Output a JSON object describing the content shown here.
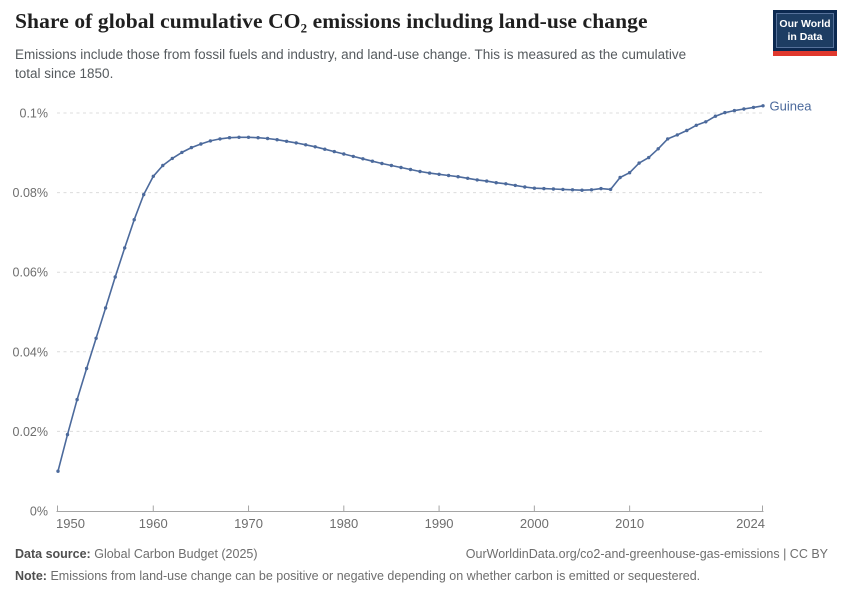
{
  "header": {
    "title": "Share of global cumulative CO₂ emissions including land-use change",
    "subtitle": "Emissions include those from fossil fuels and industry, and land-use change. This is measured as the cumulative total since 1850."
  },
  "logo": {
    "line1": "Our World",
    "line2": "in Data"
  },
  "chart_data": {
    "type": "line",
    "title": "Share of global cumulative CO₂ emissions including land-use change",
    "xlabel": "",
    "ylabel": "",
    "unit": "%",
    "grid": "horizontal-dashed",
    "legend_position": "end-of-line-label",
    "xlim": [
      1950,
      2024
    ],
    "ylim": [
      0,
      0.105
    ],
    "x_ticks": [
      1950,
      1960,
      1970,
      1980,
      1990,
      2000,
      2010,
      2024
    ],
    "y_ticks": [
      {
        "v": 0,
        "label": "0%"
      },
      {
        "v": 0.02,
        "label": "0.02%"
      },
      {
        "v": 0.04,
        "label": "0.04%"
      },
      {
        "v": 0.06,
        "label": "0.06%"
      },
      {
        "v": 0.08,
        "label": "0.08%"
      },
      {
        "v": 0.1,
        "label": "0.1%"
      }
    ],
    "series": [
      {
        "name": "Guinea",
        "color": "#4C6A9C",
        "x": [
          1950,
          1951,
          1952,
          1953,
          1954,
          1955,
          1956,
          1957,
          1958,
          1959,
          1960,
          1961,
          1962,
          1963,
          1964,
          1965,
          1966,
          1967,
          1968,
          1969,
          1970,
          1971,
          1972,
          1973,
          1974,
          1975,
          1976,
          1977,
          1978,
          1979,
          1980,
          1981,
          1982,
          1983,
          1984,
          1985,
          1986,
          1987,
          1988,
          1989,
          1990,
          1991,
          1992,
          1993,
          1994,
          1995,
          1996,
          1997,
          1998,
          1999,
          2000,
          2001,
          2002,
          2003,
          2004,
          2005,
          2006,
          2007,
          2008,
          2009,
          2010,
          2011,
          2012,
          2013,
          2014,
          2015,
          2016,
          2017,
          2018,
          2019,
          2020,
          2021,
          2022,
          2023,
          2024
        ],
        "values": [
          0.01,
          0.0192,
          0.028,
          0.0358,
          0.0434,
          0.051,
          0.0588,
          0.0661,
          0.0732,
          0.0795,
          0.0841,
          0.0868,
          0.0886,
          0.0901,
          0.0913,
          0.0922,
          0.093,
          0.0935,
          0.0938,
          0.0939,
          0.0939,
          0.0938,
          0.0936,
          0.0933,
          0.0929,
          0.0925,
          0.092,
          0.0915,
          0.0909,
          0.0903,
          0.0897,
          0.0891,
          0.0885,
          0.0879,
          0.0873,
          0.0868,
          0.0863,
          0.0858,
          0.0853,
          0.0849,
          0.0846,
          0.0843,
          0.084,
          0.0836,
          0.0832,
          0.0829,
          0.0825,
          0.0822,
          0.0818,
          0.0814,
          0.0811,
          0.081,
          0.0809,
          0.0808,
          0.0807,
          0.0806,
          0.0807,
          0.081,
          0.0808,
          0.0838,
          0.085,
          0.0874,
          0.0888,
          0.091,
          0.0935,
          0.0945,
          0.0956,
          0.0969,
          0.0978,
          0.0992,
          0.1001,
          0.1006,
          0.101,
          0.1014,
          0.1018
        ]
      }
    ]
  },
  "colors": {
    "line": "#4C6A9C",
    "grid": "#dcdcdc",
    "axis": "#a5a5a5",
    "tick_label": "#6e6e6e",
    "entity_label": "#4C6A9C"
  },
  "footer": {
    "source_label": "Data source:",
    "source_value": "Global Carbon Budget (2025)",
    "link": "OurWorldinData.org/co2-and-greenhouse-gas-emissions | CC BY",
    "note_label": "Note:",
    "note_value": "Emissions from land-use change can be positive or negative depending on whether carbon is emitted or sequestered."
  }
}
